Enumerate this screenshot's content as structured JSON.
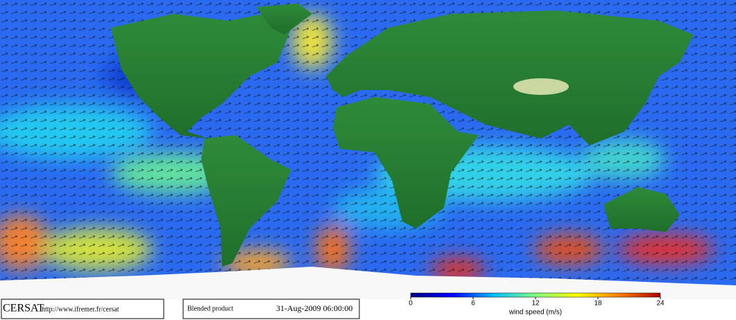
{
  "footer": {
    "logo": "CERSAT",
    "url": "http://www.ifremer.fr/cersat",
    "product": "Blended product",
    "datetime": "31-Aug-2009 06:00:00"
  },
  "colorbar": {
    "label": "wind speed (m/s)",
    "range": [
      0,
      24
    ],
    "ticks": [
      0,
      6,
      12,
      18,
      24
    ],
    "colors": [
      "#00007f",
      "#0000ff",
      "#00bfff",
      "#7fff7f",
      "#ffff00",
      "#ff8000",
      "#b00000"
    ]
  }
}
